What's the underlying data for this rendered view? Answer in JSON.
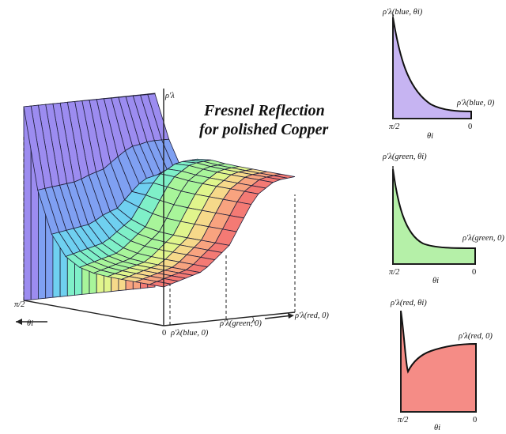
{
  "title": {
    "line1": "Fresnel Reflection",
    "line2": "for polished Copper"
  },
  "main_plot": {
    "rho_axis": "ρ'λ",
    "theta_axis": "θi",
    "lambda_axis": "λ",
    "pi_half": "π/2",
    "zero": "0",
    "tick_blue": "ρ'λ(blue, 0)",
    "tick_green": "ρ'λ(green, 0)",
    "tick_red": "ρ'λ(red, 0)"
  },
  "subplots": [
    {
      "key": "blue",
      "color": "#c6b4f2",
      "top_label": "ρ'λ(blue, θi)",
      "right_label": "ρ'λ(blue, 0)",
      "x_left": "π/2",
      "x_mid": "θi",
      "x_right": "0"
    },
    {
      "key": "green",
      "color": "#b5f0a8",
      "top_label": "ρ'λ(green, θi)",
      "right_label": "ρ'λ(green, 0)",
      "x_left": "π/2",
      "x_mid": "θi",
      "x_right": "0"
    },
    {
      "key": "red",
      "color": "#f58c86",
      "top_label": "ρ'λ(red, θi)",
      "right_label": "ρ'λ(red, 0)",
      "x_left": "π/2",
      "x_mid": "θi",
      "x_right": "0"
    }
  ],
  "colors": {
    "surface_spectrum": [
      "#9c8cf0",
      "#7fa0f2",
      "#6fd0f0",
      "#7ff0c8",
      "#a8f59a",
      "#e0f58c",
      "#f6d98a",
      "#f8a37f",
      "#f47a74"
    ],
    "grid": "#1f1f3a"
  }
}
